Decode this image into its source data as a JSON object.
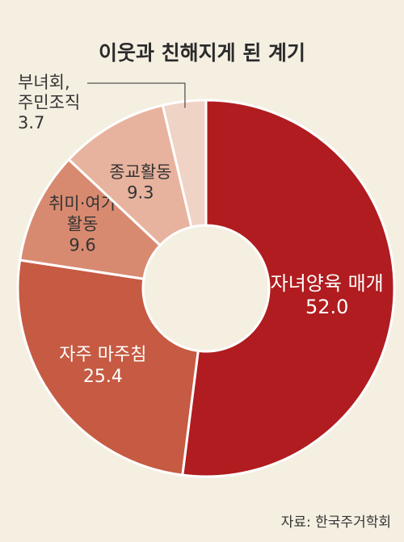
{
  "chart_data": {
    "type": "pie",
    "variant": "donut",
    "title": "이웃과 친해지게 된 계기",
    "categories": [
      "자녀양육 매개",
      "자주 마주침",
      "취미·여가 활동",
      "종교활동",
      "부녀회, 주민조직"
    ],
    "label_lines": [
      [
        "자녀양육 매개"
      ],
      [
        "자주 마주침"
      ],
      [
        "취미·여가",
        "활동"
      ],
      [
        "종교활동"
      ],
      [
        "부녀회,",
        "주민조직"
      ]
    ],
    "values": [
      52.0,
      25.4,
      9.6,
      9.3,
      3.7
    ],
    "value_labels": [
      "52.0",
      "25.4",
      "9.6",
      "9.3",
      "3.7"
    ],
    "colors": [
      "#b01c1f",
      "#c65a42",
      "#d88a70",
      "#e8b39e",
      "#efd3c5"
    ],
    "start": "top, clockwise"
  },
  "source": "자료: 한국주거학회"
}
